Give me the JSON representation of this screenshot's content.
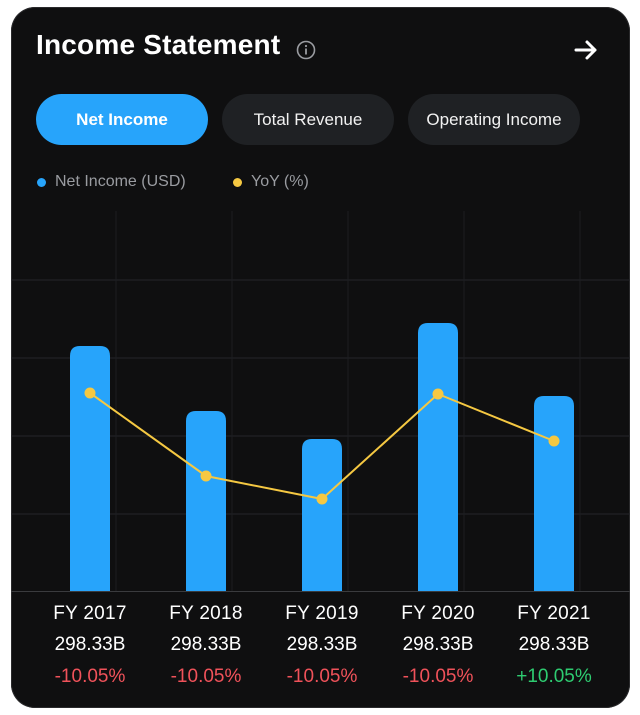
{
  "header": {
    "title": "Income Statement",
    "info_icon": "info-icon",
    "arrow_icon": "arrow-right-icon"
  },
  "tabs": [
    {
      "label": "Net Income",
      "active": true
    },
    {
      "label": "Total Revenue",
      "active": false
    },
    {
      "label": "Operating Income",
      "active": false
    }
  ],
  "legend": [
    {
      "label": "Net Income (USD)",
      "color": "#27a4fb"
    },
    {
      "label": "YoY (%)",
      "color": "#f5c842"
    }
  ],
  "colors": {
    "accent": "#27a4fb",
    "yoy_line": "#f5c842",
    "negative": "#f0525a",
    "positive": "#2ecc71"
  },
  "chart_data": {
    "type": "bar",
    "categories": [
      "FY 2017",
      "FY 2018",
      "FY 2019",
      "FY 2020",
      "FY 2021"
    ],
    "series": [
      {
        "name": "Net Income (USD)",
        "type": "bar",
        "values": [
          245,
          180,
          152,
          268,
          195
        ]
      },
      {
        "name": "YoY (%)",
        "type": "line",
        "values": [
          198,
          115,
          92,
          197,
          150
        ]
      }
    ],
    "ylim": [
      0,
      380
    ],
    "grid": true,
    "legend_position": "top-left"
  },
  "summary": [
    {
      "year": "FY 2017",
      "value": "298.33B",
      "change": "-10.05%",
      "trend": "down"
    },
    {
      "year": "FY 2018",
      "value": "298.33B",
      "change": "-10.05%",
      "trend": "down"
    },
    {
      "year": "FY 2019",
      "value": "298.33B",
      "change": "-10.05%",
      "trend": "down"
    },
    {
      "year": "FY 2020",
      "value": "298.33B",
      "change": "-10.05%",
      "trend": "down"
    },
    {
      "year": "FY 2021",
      "value": "298.33B",
      "change": "+10.05%",
      "trend": "up"
    }
  ]
}
